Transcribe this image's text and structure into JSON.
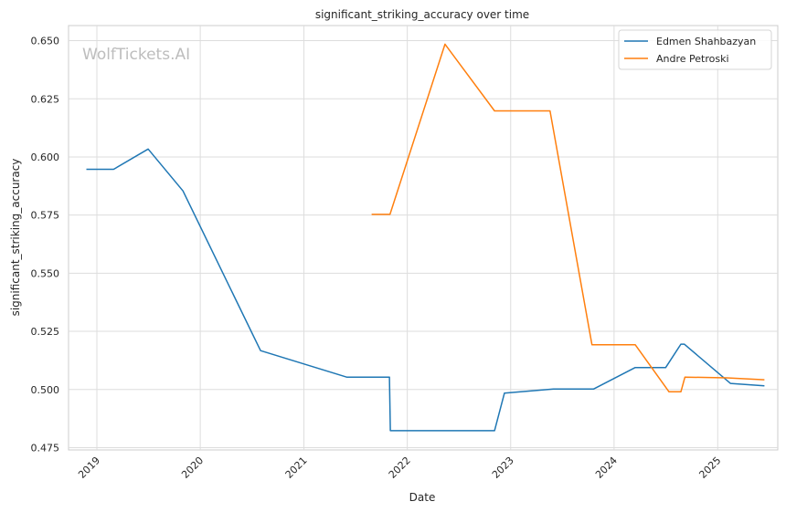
{
  "chart_data": {
    "type": "line",
    "title": "significant_striking_accuracy over time",
    "xlabel": "Date",
    "ylabel": "significant_striking_accuracy",
    "watermark": "WolfTickets.AI",
    "xlim": [
      "2018-09-23",
      "2025-08-01"
    ],
    "ylim": [
      0.474,
      0.6565
    ],
    "x_ticks": [
      "2019-01-01",
      "2020-01-01",
      "2021-01-01",
      "2022-01-01",
      "2023-01-01",
      "2024-01-01",
      "2025-01-01"
    ],
    "x_tick_labels": [
      "2019",
      "2020",
      "2021",
      "2022",
      "2023",
      "2024",
      "2025"
    ],
    "y_ticks": [
      0.475,
      0.5,
      0.525,
      0.55,
      0.575,
      0.6,
      0.625,
      0.65
    ],
    "y_tick_labels": [
      "0.475",
      "0.500",
      "0.525",
      "0.550",
      "0.575",
      "0.600",
      "0.625",
      "0.650"
    ],
    "grid": true,
    "legend_position": "top-right",
    "series": [
      {
        "name": "Edmen Shahbazyan",
        "color": "#1f77b4",
        "points": [
          [
            "2018-11-25",
            0.5947
          ],
          [
            "2019-03-01",
            0.5947
          ],
          [
            "2019-07-01",
            0.6034
          ],
          [
            "2019-11-01",
            0.5854
          ],
          [
            "2020-08-01",
            0.5167
          ],
          [
            "2021-06-01",
            0.5053
          ],
          [
            "2021-10-30",
            0.5053
          ],
          [
            "2021-11-02",
            0.4823
          ],
          [
            "2022-11-05",
            0.4823
          ],
          [
            "2022-12-10",
            0.4984
          ],
          [
            "2023-06-01",
            0.5002
          ],
          [
            "2023-10-21",
            0.5002
          ],
          [
            "2024-03-15",
            0.5094
          ],
          [
            "2024-07-01",
            0.5094
          ],
          [
            "2024-08-24",
            0.5195
          ],
          [
            "2024-09-05",
            0.5195
          ],
          [
            "2025-02-15",
            0.5026
          ],
          [
            "2025-06-15",
            0.5016
          ]
        ]
      },
      {
        "name": "Andre Petroski",
        "color": "#ff7f0e",
        "points": [
          [
            "2021-08-28",
            0.5753
          ],
          [
            "2021-11-01",
            0.5753
          ],
          [
            "2022-05-14",
            0.6485
          ],
          [
            "2022-11-05",
            0.6198
          ],
          [
            "2023-05-20",
            0.6198
          ],
          [
            "2023-10-15",
            0.5192
          ],
          [
            "2024-03-16",
            0.5192
          ],
          [
            "2024-07-13",
            0.499
          ],
          [
            "2024-08-24",
            0.499
          ],
          [
            "2024-09-07",
            0.5053
          ],
          [
            "2025-02-01",
            0.505
          ],
          [
            "2025-06-15",
            0.5042
          ]
        ]
      }
    ]
  }
}
